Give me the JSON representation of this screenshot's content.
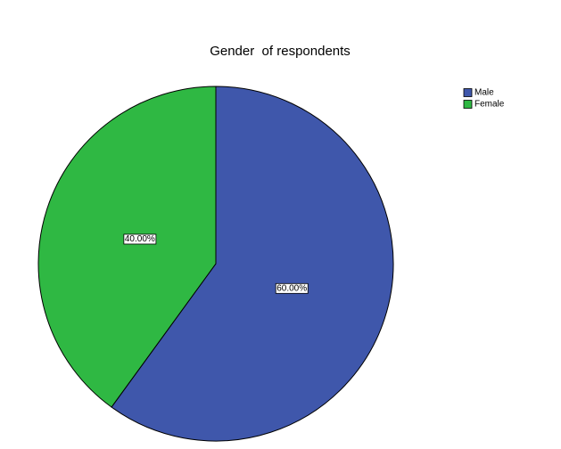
{
  "chart_data": {
    "type": "pie",
    "title": "Gender  of respondents",
    "categories": [
      "Male",
      "Female"
    ],
    "values": [
      60,
      40
    ],
    "value_labels": [
      "60.00%",
      "40.00%"
    ],
    "colors": [
      "#3f57ab",
      "#2fb843"
    ],
    "legend": "top-right"
  }
}
